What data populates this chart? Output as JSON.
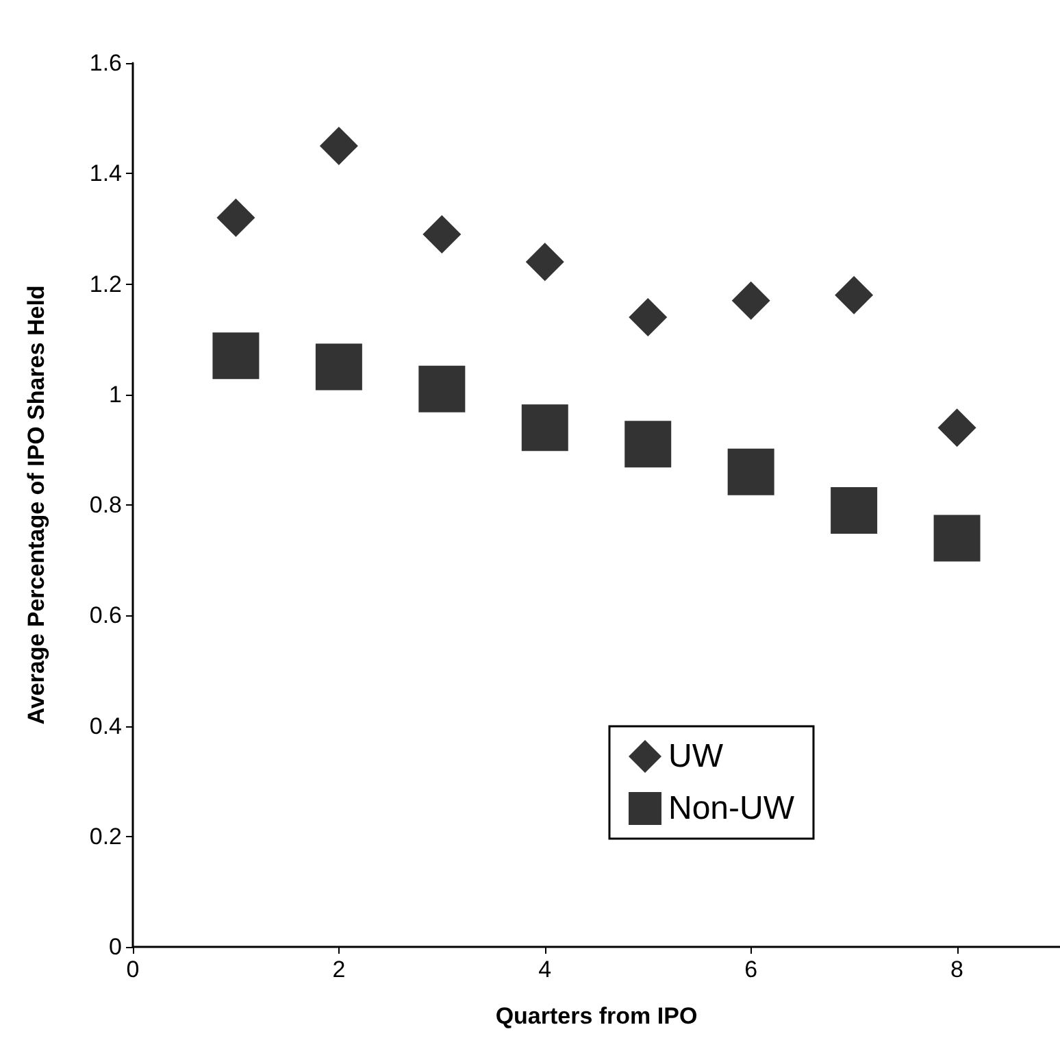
{
  "chart_data": {
    "type": "scatter",
    "xlabel": "Quarters from IPO",
    "ylabel": "Average Percentage of IPO Shares Held",
    "x": [
      1,
      2,
      3,
      4,
      5,
      6,
      7,
      8
    ],
    "series": [
      {
        "name": "UW",
        "color": "#000000",
        "marker": "diamond",
        "values": [
          1.32,
          1.45,
          1.29,
          1.24,
          1.14,
          1.17,
          1.18,
          0.94
        ]
      },
      {
        "name": "Non-UW",
        "color": "#000000",
        "marker": "square",
        "values": [
          1.07,
          1.05,
          1.01,
          0.94,
          0.91,
          0.86,
          0.79,
          0.74
        ]
      }
    ],
    "xlim": [
      0,
      9
    ],
    "xticks": [
      0,
      2,
      4,
      6,
      8
    ],
    "ylim": [
      0,
      1.6
    ],
    "yticks": [
      0,
      0.2,
      0.4,
      0.6,
      0.8,
      1,
      1.2,
      1.4,
      1.6
    ],
    "grid": false,
    "legend": "right"
  }
}
